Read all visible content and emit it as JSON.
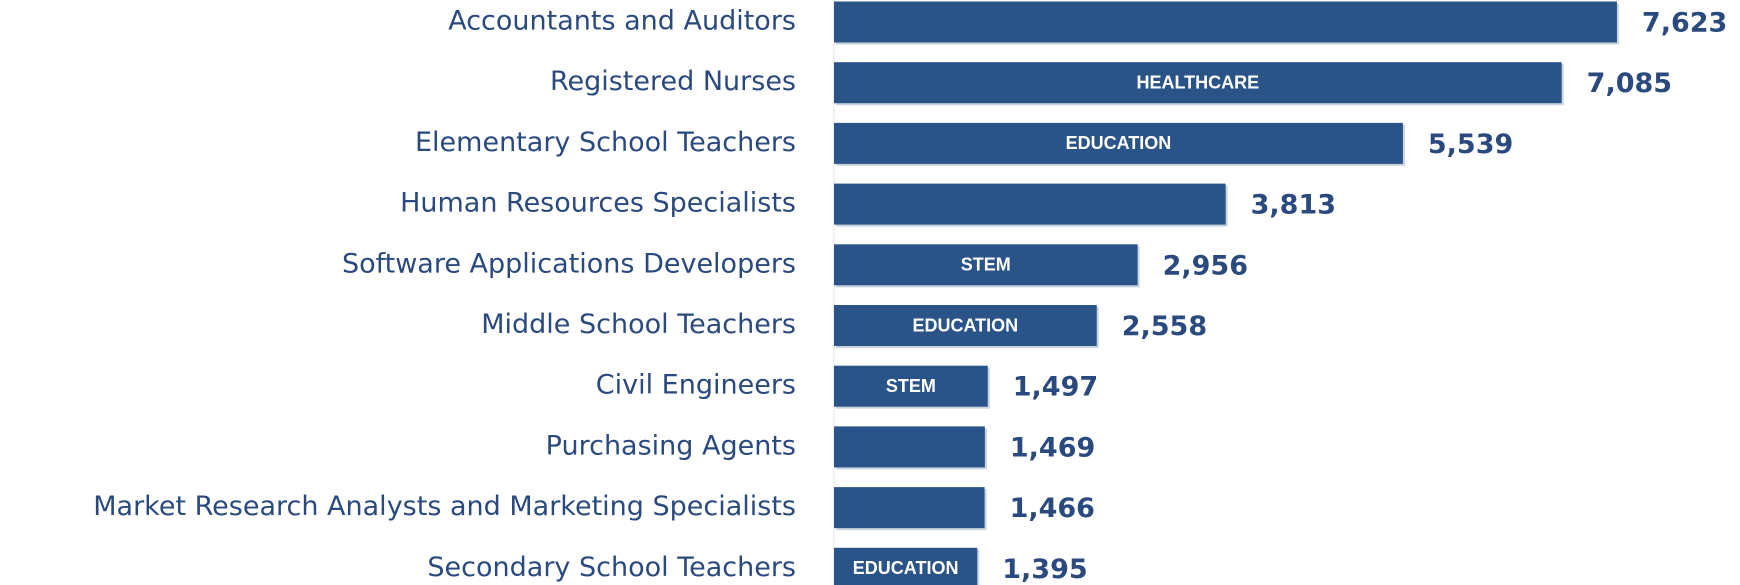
{
  "chart_data": {
    "type": "bar",
    "orientation": "horizontal",
    "categories": [
      "Accountants and Auditors",
      "Registered Nurses",
      "Elementary School Teachers",
      "Human Resources Specialists",
      "Software Applications Developers",
      "Middle School Teachers",
      "Civil Engineers",
      "Purchasing Agents",
      "Market Research Analysts and Marketing Specialists",
      "Secondary School Teachers"
    ],
    "values": [
      7623,
      7085,
      5539,
      3813,
      2956,
      2558,
      1497,
      1469,
      1466,
      1395
    ],
    "value_labels": [
      "7,623",
      "7,085",
      "5,539",
      "3,813",
      "2,956",
      "2,558",
      "1,497",
      "1,469",
      "1,466",
      "1,395"
    ],
    "bar_labels": [
      null,
      "HEALTHCARE",
      "EDUCATION",
      null,
      "STEM",
      "EDUCATION",
      "STEM",
      null,
      null,
      "EDUCATION"
    ],
    "color": "#2a5488",
    "xlim": [
      0,
      8500
    ]
  }
}
